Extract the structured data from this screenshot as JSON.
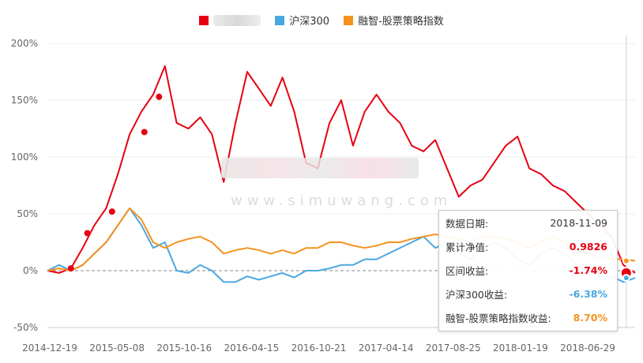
{
  "legend": {
    "fund_color": "#e60012",
    "hs300_label": "沪深300",
    "hs300_color": "#4aa8e0",
    "index_label": "融智-股票策略指数",
    "index_color": "#f5921e"
  },
  "tooltip": {
    "rows": [
      {
        "label": "数据日期:",
        "value": "2018-11-09",
        "color": "#333333"
      },
      {
        "label": "累计净值:",
        "value": "0.9826",
        "color": "#e60012"
      },
      {
        "label": "区间收益:",
        "value": "-1.74%",
        "color": "#e60012"
      },
      {
        "label": "沪深300收益:",
        "value": "-6.38%",
        "color": "#4aa8e0"
      },
      {
        "label": "融智-股票策略指数收益:",
        "value": "8.70%",
        "color": "#f5921e"
      }
    ]
  },
  "watermark": {
    "text": "www.simuwang.com"
  },
  "chart_data": {
    "type": "line",
    "x_ticks": [
      "2014-12-19",
      "2015-05-08",
      "2015-10-16",
      "2016-04-15",
      "2016-10-21",
      "2017-04-14",
      "2017-08-25",
      "2018-01-19",
      "2018-06-29"
    ],
    "y_ticks": [
      "200%",
      "150%",
      "100%",
      "50%",
      "0%",
      "-50%"
    ],
    "ylim": [
      -50,
      200
    ],
    "x": [
      0,
      0.02,
      0.04,
      0.06,
      0.08,
      0.1,
      0.12,
      0.14,
      0.16,
      0.18,
      0.2,
      0.22,
      0.24,
      0.26,
      0.28,
      0.3,
      0.32,
      0.34,
      0.36,
      0.38,
      0.4,
      0.42,
      0.44,
      0.46,
      0.48,
      0.5,
      0.52,
      0.54,
      0.56,
      0.58,
      0.6,
      0.62,
      0.64,
      0.66,
      0.68,
      0.7,
      0.72,
      0.74,
      0.76,
      0.78,
      0.8,
      0.82,
      0.84,
      0.86,
      0.88,
      0.9,
      0.92,
      0.94,
      0.96,
      0.98,
      1.0
    ],
    "series": [
      {
        "color": "#e60012",
        "values": [
          0,
          -2,
          2,
          20,
          40,
          55,
          85,
          120,
          140,
          155,
          180,
          130,
          125,
          135,
          120,
          78,
          130,
          175,
          160,
          145,
          170,
          140,
          95,
          90,
          130,
          150,
          110,
          140,
          155,
          140,
          130,
          110,
          105,
          115,
          90,
          65,
          75,
          80,
          95,
          110,
          118,
          90,
          85,
          75,
          70,
          60,
          50,
          40,
          30,
          5,
          -2
        ]
      },
      {
        "color": "#4aa8e0",
        "values": [
          0,
          5,
          0,
          5,
          15,
          25,
          40,
          55,
          40,
          20,
          25,
          0,
          -2,
          5,
          0,
          -10,
          -10,
          -5,
          -8,
          -5,
          -2,
          -6,
          0,
          0,
          2,
          5,
          5,
          10,
          10,
          15,
          20,
          25,
          30,
          20,
          25,
          15,
          10,
          20,
          25,
          20,
          10,
          5,
          15,
          20,
          15,
          5,
          0,
          -5,
          -5,
          -10,
          -6.38
        ]
      },
      {
        "color": "#f5921e",
        "values": [
          0,
          2,
          0,
          5,
          15,
          25,
          40,
          55,
          45,
          25,
          20,
          25,
          28,
          30,
          25,
          15,
          18,
          20,
          18,
          15,
          18,
          15,
          20,
          20,
          25,
          25,
          22,
          20,
          22,
          25,
          25,
          28,
          30,
          32,
          30,
          28,
          25,
          30,
          30,
          28,
          25,
          20,
          25,
          30,
          25,
          18,
          15,
          12,
          10,
          10,
          8.7
        ]
      }
    ],
    "markers": [
      {
        "series": 0,
        "x": 0.04,
        "y": 2
      },
      {
        "series": 0,
        "x": 0.068,
        "y": 33
      },
      {
        "series": 0,
        "x": 0.11,
        "y": 52
      },
      {
        "series": 0,
        "x": 0.165,
        "y": 122
      },
      {
        "series": 0,
        "x": 0.19,
        "y": 153
      }
    ],
    "cursor_x": 0.985,
    "grid": true
  }
}
